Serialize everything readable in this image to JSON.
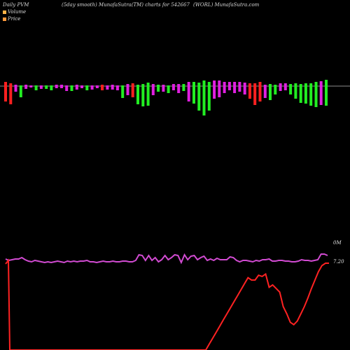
{
  "header": {
    "left": "Daily PVM",
    "middle": "(5day smooth) MunafaSutra(TM) charts for 542667",
    "right": "(WORL) MunafaSutra.com"
  },
  "legend": [
    {
      "label": "Volume",
      "color": "#ffb347"
    },
    {
      "label": "Price",
      "color": "#ff9a3c"
    }
  ],
  "chart_data": {
    "type": "bar",
    "title": "",
    "series": [
      {
        "name": "Volume",
        "colors_hint": "red = falling, green = rising, magenta = upper half",
        "values": [
          {
            "up": 6,
            "down": -22,
            "color": "red"
          },
          {
            "up": 4,
            "down": -26,
            "color": "red"
          },
          {
            "up": 2,
            "down": -8,
            "color": "magenta"
          },
          {
            "up": 1,
            "down": -16,
            "color": "green"
          },
          {
            "up": 2,
            "down": -4,
            "color": "magenta"
          },
          {
            "up": 1,
            "down": -2,
            "color": "magenta"
          },
          {
            "up": 1,
            "down": -6,
            "color": "green"
          },
          {
            "up": 1,
            "down": -4,
            "color": "magenta"
          },
          {
            "up": 1,
            "down": -4,
            "color": "green"
          },
          {
            "up": 1,
            "down": -6,
            "color": "green"
          },
          {
            "up": 2,
            "down": -3,
            "color": "magenta"
          },
          {
            "up": 2,
            "down": -3,
            "color": "magenta"
          },
          {
            "up": 1,
            "down": -7,
            "color": "magenta"
          },
          {
            "up": 1,
            "down": -7,
            "color": "green"
          },
          {
            "up": 2,
            "down": -5,
            "color": "magenta"
          },
          {
            "up": 1,
            "down": -3,
            "color": "magenta"
          },
          {
            "up": 1,
            "down": -6,
            "color": "green"
          },
          {
            "up": 1,
            "down": -5,
            "color": "magenta"
          },
          {
            "up": 1,
            "down": -3,
            "color": "magenta"
          },
          {
            "up": 2,
            "down": -6,
            "color": "red"
          },
          {
            "up": 1,
            "down": -5,
            "color": "magenta"
          },
          {
            "up": 2,
            "down": -5,
            "color": "magenta"
          },
          {
            "up": 1,
            "down": -6,
            "color": "magenta"
          },
          {
            "up": 1,
            "down": -17,
            "color": "green"
          },
          {
            "up": 3,
            "down": -13,
            "color": "magenta"
          },
          {
            "up": 4,
            "down": -16,
            "color": "red"
          },
          {
            "up": 2,
            "down": -26,
            "color": "green"
          },
          {
            "up": 3,
            "down": -29,
            "color": "green"
          },
          {
            "up": 5,
            "down": -28,
            "color": "green"
          },
          {
            "up": 3,
            "down": -13,
            "color": "magenta"
          },
          {
            "up": 2,
            "down": -8,
            "color": "green"
          },
          {
            "up": 2,
            "down": -8,
            "color": "magenta"
          },
          {
            "up": 1,
            "down": -10,
            "color": "green"
          },
          {
            "up": 3,
            "down": -6,
            "color": "magenta"
          },
          {
            "up": 3,
            "down": -10,
            "color": "magenta"
          },
          {
            "up": 3,
            "down": -7,
            "color": "green"
          },
          {
            "up": 6,
            "down": -22,
            "color": "magenta"
          },
          {
            "up": 6,
            "down": -25,
            "color": "green"
          },
          {
            "up": 5,
            "down": -35,
            "color": "green"
          },
          {
            "up": 8,
            "down": -42,
            "color": "green"
          },
          {
            "up": 6,
            "down": -35,
            "color": "green"
          },
          {
            "up": 8,
            "down": -18,
            "color": "magenta"
          },
          {
            "up": 8,
            "down": -16,
            "color": "magenta"
          },
          {
            "up": 6,
            "down": -10,
            "color": "magenta"
          },
          {
            "up": 6,
            "down": -6,
            "color": "magenta"
          },
          {
            "up": 6,
            "down": -10,
            "color": "magenta"
          },
          {
            "up": 6,
            "down": -8,
            "color": "magenta"
          },
          {
            "up": 5,
            "down": -12,
            "color": "magenta"
          },
          {
            "up": 4,
            "down": -18,
            "color": "red"
          },
          {
            "up": 4,
            "down": -27,
            "color": "red"
          },
          {
            "up": 6,
            "down": -22,
            "color": "red"
          },
          {
            "up": 2,
            "down": -17,
            "color": "magenta"
          },
          {
            "up": 3,
            "down": -20,
            "color": "green"
          },
          {
            "up": 2,
            "down": -12,
            "color": "green"
          },
          {
            "up": 4,
            "down": -7,
            "color": "magenta"
          },
          {
            "up": 4,
            "down": -6,
            "color": "magenta"
          },
          {
            "up": 3,
            "down": -12,
            "color": "green"
          },
          {
            "up": 4,
            "down": -18,
            "color": "green"
          },
          {
            "up": 3,
            "down": -24,
            "color": "green"
          },
          {
            "up": 4,
            "down": -25,
            "color": "green"
          },
          {
            "up": 4,
            "down": -28,
            "color": "green"
          },
          {
            "up": 6,
            "down": -30,
            "color": "green"
          },
          {
            "up": 7,
            "down": -27,
            "color": "magenta"
          },
          {
            "up": 9,
            "down": -28,
            "color": "green"
          }
        ]
      },
      {
        "name": "",
        "type": "line",
        "color": "#d24bd2",
        "values": [
          8,
          10,
          9,
          8,
          8,
          6,
          9,
          11,
          12,
          10,
          11,
          12,
          13,
          12,
          13,
          12,
          11,
          12,
          13,
          11,
          12,
          11,
          12,
          11,
          11,
          10,
          12,
          12,
          13,
          12,
          11,
          12,
          12,
          11,
          12,
          12,
          11,
          11,
          12,
          12,
          10,
          2,
          3,
          10,
          3,
          10,
          6,
          12,
          9,
          3,
          9,
          6,
          2,
          3,
          13,
          2,
          9,
          4,
          3,
          9,
          6,
          4,
          10,
          8,
          10,
          7,
          9,
          9,
          9,
          5,
          6,
          10,
          12,
          10,
          10,
          11,
          12,
          10,
          11,
          9,
          9,
          8,
          11,
          11,
          10,
          10,
          11,
          11,
          12,
          12,
          11,
          9,
          10,
          10,
          11,
          10,
          9,
          1,
          1,
          3
        ]
      },
      {
        "name": "",
        "type": "line",
        "color": "#ff2222",
        "x": [
          0,
          1,
          2,
          3,
          4,
          5,
          6,
          7,
          8,
          9,
          10,
          11,
          12,
          13,
          14,
          15,
          16,
          17,
          18,
          19,
          20,
          21,
          22,
          23,
          24,
          25,
          26,
          27,
          28,
          29,
          30,
          31,
          32,
          33,
          34,
          35
        ],
        "values": [
          0,
          0.5,
          1,
          1.5,
          2,
          2.5,
          3,
          3.5,
          4,
          4.5,
          5,
          5.5,
          6,
          5.8,
          5.8,
          6.2,
          6.1,
          6.3,
          5.2,
          5.4,
          5.1,
          4.8,
          3.6,
          3,
          2.3,
          2.1,
          2.4,
          3.0,
          3.6,
          4.3,
          5.1,
          5.8,
          6.5,
          7,
          7.2,
          7.2
        ]
      }
    ],
    "axis_labels": {
      "volume_marker": "0M",
      "price_marker": "7.20"
    }
  }
}
